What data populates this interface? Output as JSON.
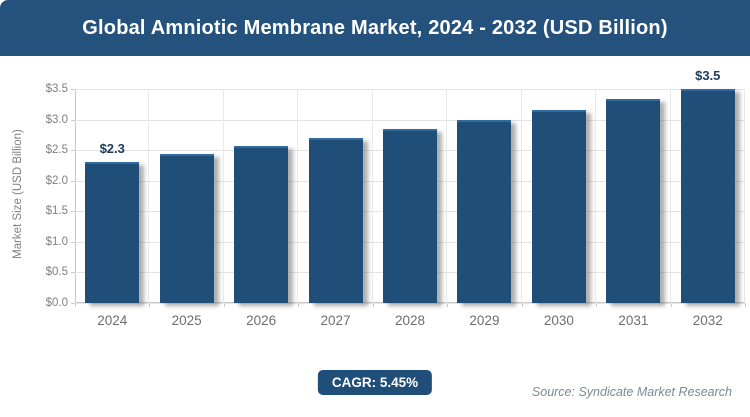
{
  "title": "Global Amniotic Membrane Market, 2024 - 2032 (USD Billion)",
  "colors": {
    "banner": "#24527d",
    "bar": "#1f4e79",
    "badge": "#1f4e79",
    "grid": "#e4e4e4",
    "axis_text": "#7f7f7f",
    "data_label": "#1f3a5c",
    "source_text": "#7b8a90"
  },
  "y_axis": {
    "title": "Market Size (USD Billion)",
    "tick_labels": [
      "$3.5",
      "$3.0",
      "$2.5",
      "$2.0",
      "$1.5",
      "$1.0",
      "$0.5",
      "$0.0"
    ]
  },
  "footer": {
    "cagr_label": "CAGR: 5.45%",
    "source": "Source: Syndicate Market Research"
  },
  "chart_data": {
    "type": "bar",
    "title": "Global Amniotic Membrane Market, 2024 - 2032 (USD Billion)",
    "categories": [
      "2024",
      "2025",
      "2026",
      "2027",
      "2028",
      "2029",
      "2030",
      "2031",
      "2032"
    ],
    "values": [
      2.3,
      2.43,
      2.56,
      2.7,
      2.84,
      3.0,
      3.16,
      3.33,
      3.5
    ],
    "point_labels": {
      "2024": "$2.3",
      "2032": "$3.5"
    },
    "xlabel": "",
    "ylabel": "Market Size (USD Billion)",
    "ylim": [
      0,
      3.5
    ],
    "y_tick_step": 0.5,
    "y_tick_prefix": "$",
    "grid": true,
    "legend": false,
    "cagr_pct": 5.45
  }
}
